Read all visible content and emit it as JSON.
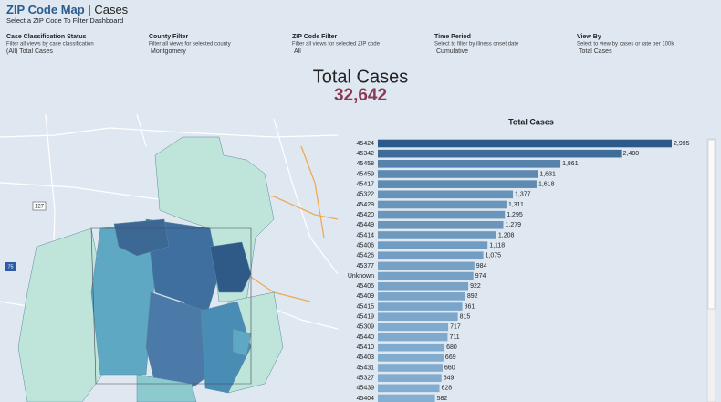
{
  "header": {
    "title": "ZIP Code Map",
    "subtitle": "Cases",
    "instruction": "Select a ZIP Code To Filter Dashboard"
  },
  "filters": [
    {
      "title": "Case Classification Status",
      "description": "Filter all views by case classification",
      "value": "(All) Total Cases"
    },
    {
      "title": "County Filter",
      "description": "Filter all views for selected county",
      "value": "Montgomery"
    },
    {
      "title": "ZIP Code Filter",
      "description": "Filter all views for selected ZIP code",
      "value": "All"
    },
    {
      "title": "Time Period",
      "description": "Select to filter by illness onset date",
      "value": "Cumulative"
    },
    {
      "title": "View By",
      "description": "Select to view by cases or rate per 100k",
      "value": "Total Cases"
    }
  ],
  "kpi": {
    "title": "Total Cases",
    "value": "32,642"
  },
  "map": {
    "route_label": "127",
    "interstate_label": "75"
  },
  "chart_data": {
    "type": "bar",
    "orientation": "horizontal",
    "title": "Total Cases",
    "categories": [
      "45424",
      "45342",
      "45458",
      "45459",
      "45417",
      "45322",
      "45429",
      "45420",
      "45449",
      "45414",
      "45406",
      "45426",
      "45377",
      "Unknown",
      "45405",
      "45409",
      "45415",
      "45419",
      "45309",
      "45440",
      "45410",
      "45403",
      "45431",
      "45327",
      "45439",
      "45404"
    ],
    "values": [
      2995,
      2480,
      1861,
      1631,
      1618,
      1377,
      1311,
      1295,
      1279,
      1208,
      1118,
      1075,
      984,
      974,
      922,
      892,
      861,
      815,
      717,
      711,
      680,
      669,
      660,
      649,
      628,
      582
    ],
    "value_labels": [
      "2,995",
      "2,480",
      "1,861",
      "1,631",
      "1,618",
      "1,377",
      "1,311",
      "1,295",
      "1,279",
      "1,208",
      "1,118",
      "1,075",
      "984",
      "974",
      "922",
      "892",
      "861",
      "815",
      "717",
      "711",
      "680",
      "669",
      "660",
      "649",
      "628",
      "582"
    ],
    "color_high": "#2c5a8a",
    "color_low": "#9ac3e2"
  }
}
